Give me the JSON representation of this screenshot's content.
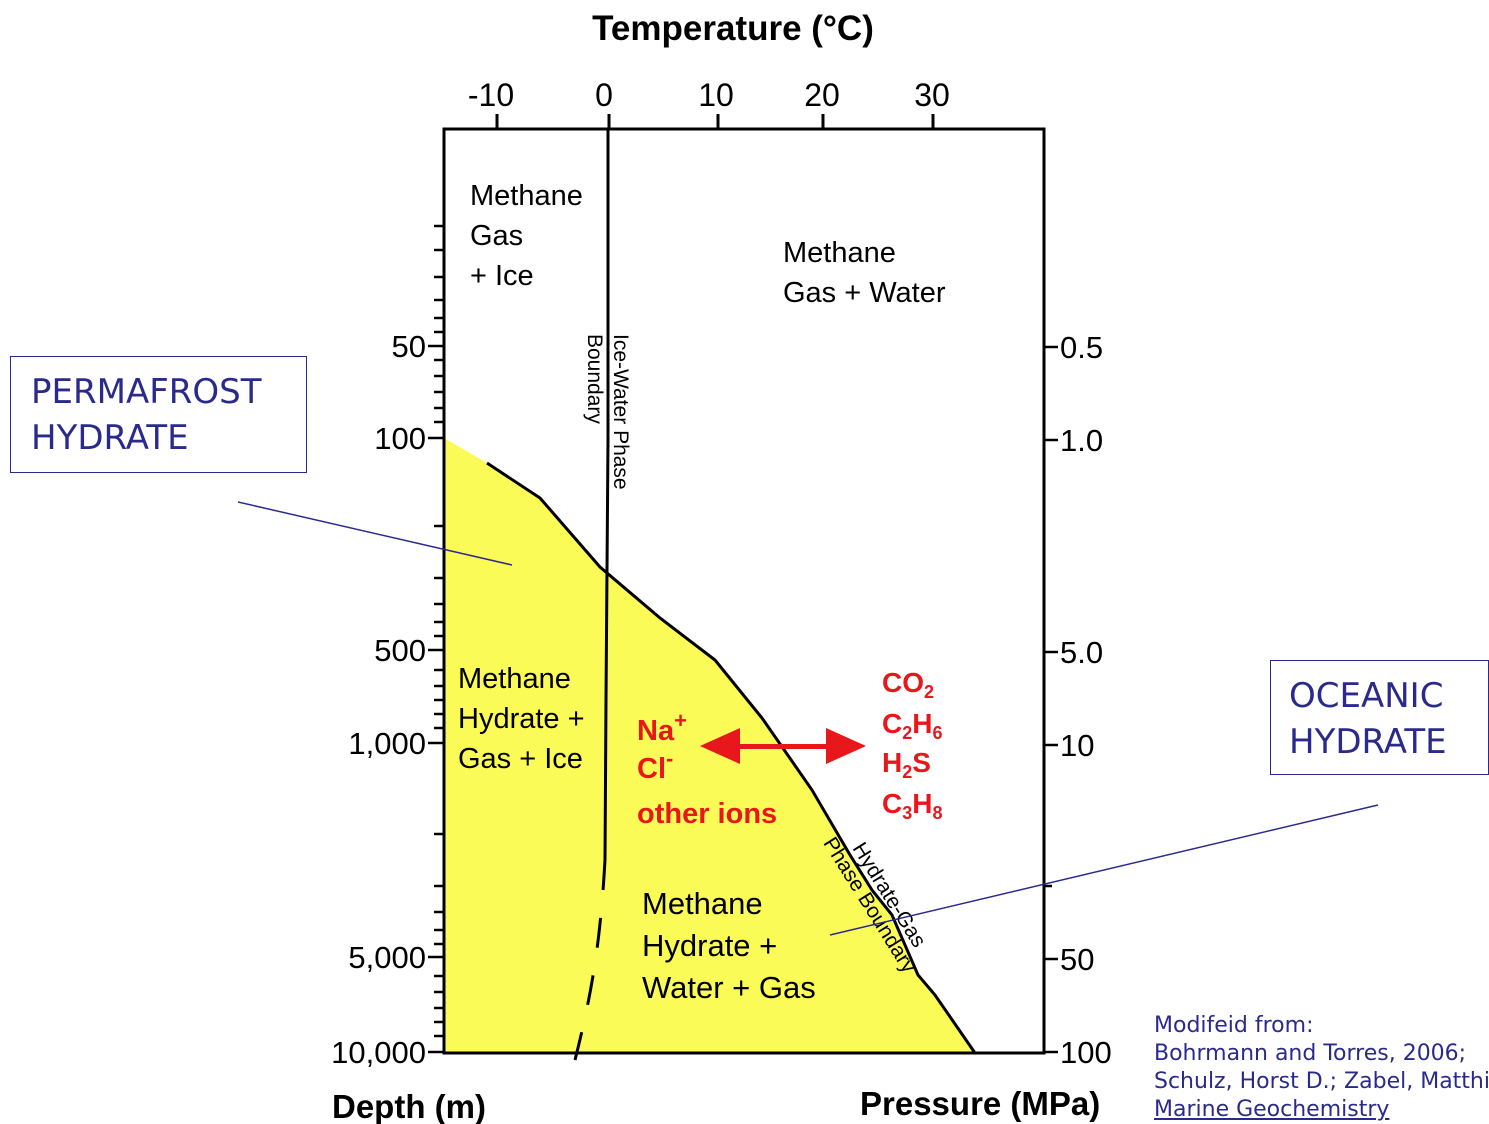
{
  "diagram": {
    "title": "Temperature (°C)",
    "top_ticks": [
      "-10",
      "0",
      "10",
      "20",
      "30"
    ],
    "left_axis_label": "Depth (m)",
    "left_ticks": [
      "50",
      "100",
      "500",
      "1,000",
      "5,000",
      "10,000"
    ],
    "right_axis_label": "Pressure (MPa)",
    "right_ticks": [
      "0.5",
      "1.0",
      "5.0",
      "10",
      "50",
      "100"
    ],
    "regions": {
      "gas_ice": [
        "Methane",
        "Gas",
        "+ Ice"
      ],
      "gas_water": [
        "Methane",
        "Gas + Water"
      ],
      "hydrate_gas_ice": [
        "Methane",
        "Hydrate +",
        "Gas + Ice"
      ],
      "hydrate_water_gas": [
        "Methane",
        "Hydrate +",
        "Water + Gas"
      ]
    },
    "ice_water_boundary": [
      "Ice-Water Phase",
      "Boundary"
    ],
    "hydrate_gas_boundary": [
      "Hydrate-Gas",
      "Phase Boundary"
    ],
    "ions": [
      "Na",
      "+",
      "Cl",
      "-",
      "other ions"
    ],
    "gases": [
      {
        "a": "CO",
        "b": "2",
        "c": "",
        "d": ""
      },
      {
        "a": "C",
        "b": "2",
        "c": "H",
        "d": "6"
      },
      {
        "a": "H",
        "b": "2",
        "c": "S",
        "d": ""
      },
      {
        "a": "C",
        "b": "3",
        "c": "H",
        "d": "8"
      }
    ],
    "colors": {
      "hydrate_fill": "#fbfb57",
      "annotation_red": "#e8171b",
      "callout_blue": "#2a2a8c"
    }
  },
  "callouts": {
    "permafrost": [
      "PERMAFROST",
      "HYDRATE"
    ],
    "oceanic": [
      "OCEANIC",
      "HYDRATE"
    ]
  },
  "credit": [
    "Modifeid from:",
    "Bohrmann and Torres, 2006;",
    "Schulz, Horst D.; Zabel, Matthias (Eds.),",
    "Marine Geochemistry"
  ]
}
